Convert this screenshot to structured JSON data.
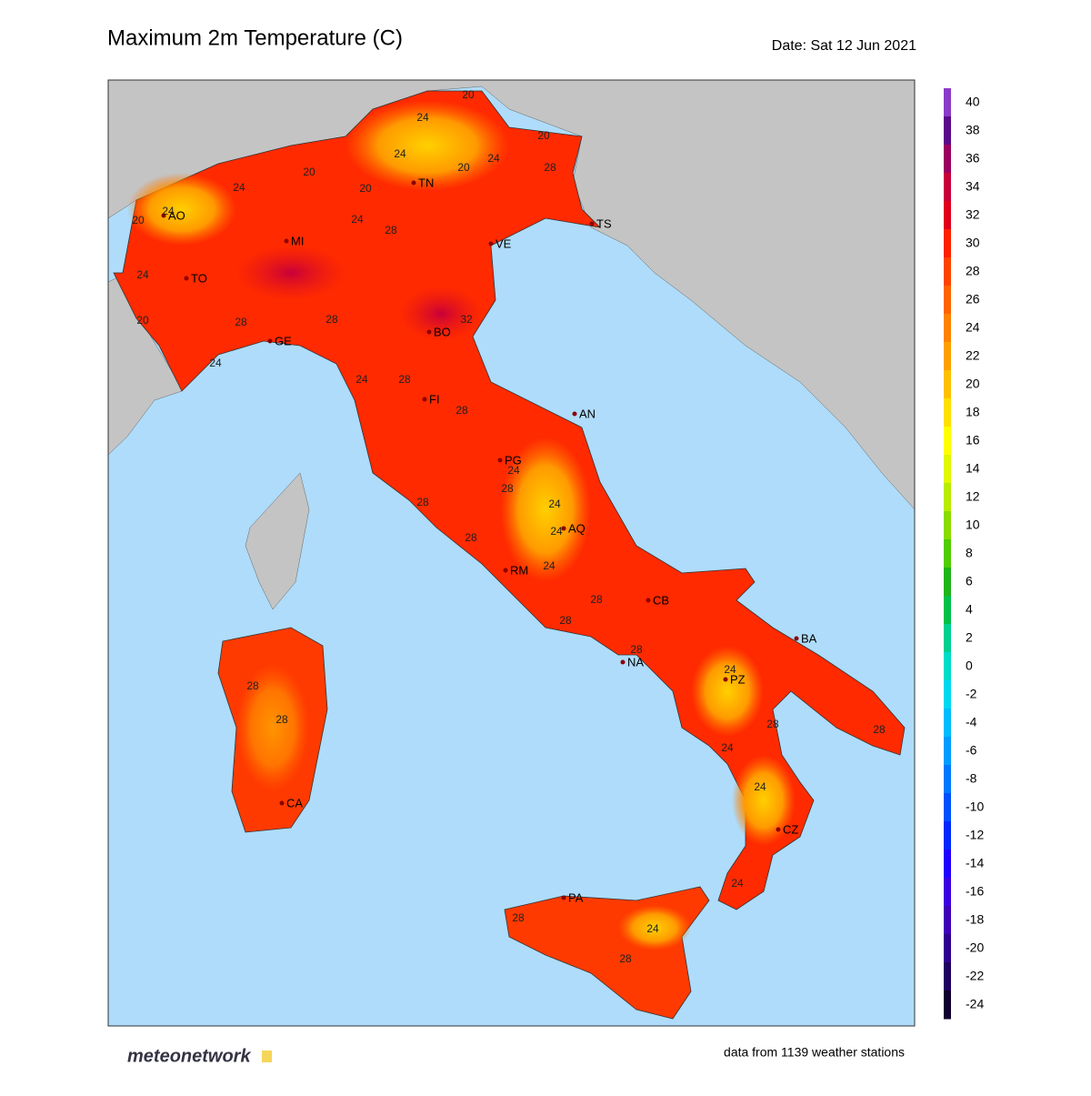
{
  "header": {
    "title": "Maximum 2m Temperature (C)",
    "date": "Date: Sat 12 Jun 2021"
  },
  "colorbar": {
    "ticks": [
      40,
      38,
      36,
      34,
      32,
      30,
      28,
      26,
      24,
      22,
      20,
      18,
      16,
      14,
      12,
      10,
      8,
      6,
      4,
      2,
      0,
      -2,
      -4,
      -6,
      -8,
      -10,
      -12,
      -14,
      -16,
      -18,
      -20,
      -22,
      -24
    ],
    "colors": [
      "#8a3cc8",
      "#5a0a8a",
      "#9a0060",
      "#c8003a",
      "#e0001e",
      "#ff2200",
      "#ff4400",
      "#ff6400",
      "#ff8200",
      "#ffa000",
      "#ffc000",
      "#ffe000",
      "#ffff00",
      "#e0f800",
      "#b8ec00",
      "#88dc00",
      "#50cc00",
      "#20b418",
      "#00c048",
      "#00d090",
      "#00dcc8",
      "#00d8f0",
      "#00bcff",
      "#009cff",
      "#0078ff",
      "#0050ff",
      "#0028ff",
      "#2000ff",
      "#3c00e0",
      "#4000b8",
      "#300090",
      "#200060",
      "#100030"
    ]
  },
  "cities": [
    "AO",
    "MI",
    "TO",
    "TN",
    "VE",
    "TS",
    "GE",
    "BO",
    "FI",
    "AN",
    "PG",
    "AQ",
    "RM",
    "CB",
    "BA",
    "NA",
    "PZ",
    "CA",
    "CZ",
    "PA"
  ],
  "contour_labels": [
    20,
    24,
    20,
    24,
    24,
    28,
    20,
    20,
    24,
    20,
    24,
    20,
    24,
    28,
    24,
    20,
    28,
    28,
    32,
    24,
    24,
    28,
    28,
    24,
    28,
    24,
    28,
    28,
    24,
    24,
    28,
    28,
    28,
    24,
    28,
    28,
    28,
    28,
    24,
    24,
    24,
    28,
    24,
    28
  ],
  "footer": {
    "logo": "meteonetwork",
    "note": "data from 1139 weather stations"
  }
}
